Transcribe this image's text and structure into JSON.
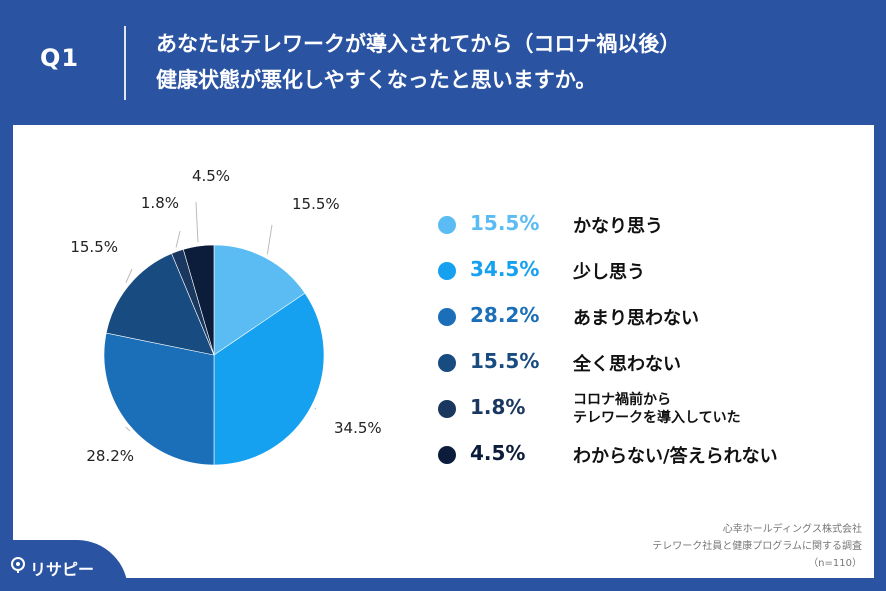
{
  "header": {
    "question_number": "Q1",
    "question_line1": "あなたはテレワークが導入されてから（コロナ禍以後）",
    "question_line2": "健康状態が悪化しやすくなったと思いますか。"
  },
  "chart_data": {
    "type": "pie",
    "slices": [
      {
        "label": "かなり思う",
        "value": 15.5,
        "display": "15.5%",
        "color": "#5bbcf3"
      },
      {
        "label": "少し思う",
        "value": 34.5,
        "display": "34.5%",
        "color": "#15a0f0"
      },
      {
        "label": "あまり思わない",
        "value": 28.2,
        "display": "28.2%",
        "color": "#1b6fb8"
      },
      {
        "label": "全く思わない",
        "value": 15.5,
        "display": "15.5%",
        "color": "#184b80"
      },
      {
        "label": "コロナ禍前から\nテレワークを導入していた",
        "value": 1.8,
        "display": "1.8%",
        "color": "#1a3760"
      },
      {
        "label": "わからない/答えられない",
        "value": 4.5,
        "display": "4.5%",
        "color": "#0c1d3b"
      }
    ]
  },
  "legend": [
    {
      "pct": "15.5%",
      "label": "かなり思う",
      "color": "#5bbcf3"
    },
    {
      "pct": "34.5%",
      "label": "少し思う",
      "color": "#15a0f0"
    },
    {
      "pct": "28.2%",
      "label": "あまり思わない",
      "color": "#1b6fb8"
    },
    {
      "pct": "15.5%",
      "label": "全く思わない",
      "color": "#184b80"
    },
    {
      "pct": "1.8%",
      "label_line1": "コロナ禍前から",
      "label_line2": "テレワークを導入していた",
      "color": "#1a3760"
    },
    {
      "pct": "4.5%",
      "label": "わからない/答えられない",
      "color": "#0c1d3b"
    }
  ],
  "source": {
    "line1": "心幸ホールディングス株式会社",
    "line2": "テレワーク社員と健康プログラムに関する調査",
    "line3": "（n=110）"
  },
  "logo": {
    "text": "リサピー",
    "icon": "pin-icon"
  }
}
